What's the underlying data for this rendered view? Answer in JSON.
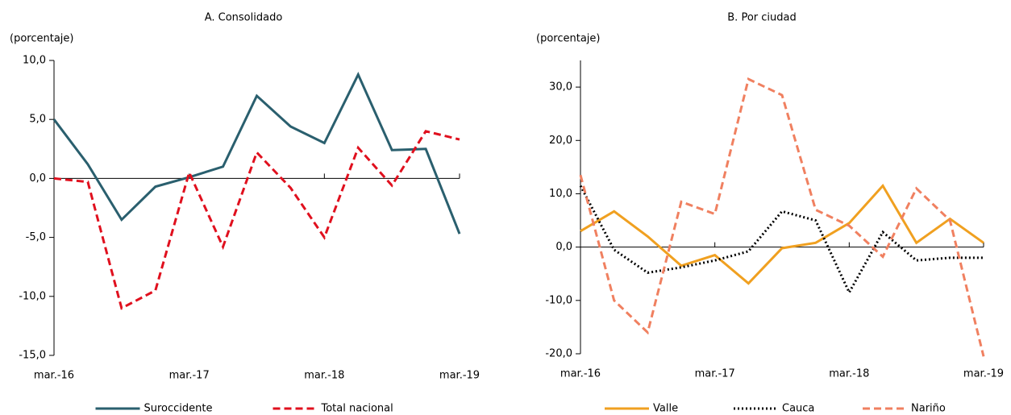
{
  "chart_data": [
    {
      "type": "line",
      "title": "A. Consolidado",
      "y_label": "(porcentaje)",
      "categories": [
        "mar.-16",
        null,
        null,
        null,
        "mar.-17",
        null,
        null,
        null,
        "mar.-18",
        null,
        null,
        null,
        "mar.-19"
      ],
      "series": [
        {
          "name": "Suroccidente",
          "color": "#2a5f6e",
          "dash": "solid",
          "values": [
            5.0,
            1.2,
            -3.5,
            -0.7,
            0.1,
            1.0,
            7.0,
            4.4,
            3.0,
            8.8,
            2.4,
            2.5,
            -4.7
          ]
        },
        {
          "name": "Total nacional",
          "color": "#e0101e",
          "dash": "dashed",
          "values": [
            0.0,
            -0.3,
            -11.0,
            -9.5,
            0.5,
            -5.8,
            2.2,
            -0.8,
            -5.0,
            2.6,
            -0.6,
            4.0,
            3.3
          ]
        }
      ],
      "ylim": [
        -15,
        10
      ],
      "yticks": [
        {
          "value": -15,
          "label": "-15,0"
        },
        {
          "value": -10,
          "label": "-10,0"
        },
        {
          "value": -5,
          "label": "-5,0"
        },
        {
          "value": 0,
          "label": "0,0"
        },
        {
          "value": 5,
          "label": "5,0"
        },
        {
          "value": 10,
          "label": "10,0"
        }
      ]
    },
    {
      "type": "line",
      "title": "B. Por ciudad",
      "y_label": "(porcentaje)",
      "categories": [
        "mar.-16",
        null,
        null,
        null,
        "mar.-17",
        null,
        null,
        null,
        "mar.-18",
        null,
        null,
        null,
        "mar.-19"
      ],
      "series": [
        {
          "name": "Valle",
          "color": "#f0a020",
          "dash": "solid",
          "values": [
            3.0,
            6.7,
            2.0,
            -3.5,
            -1.5,
            -6.8,
            -0.2,
            0.8,
            4.5,
            11.5,
            0.8,
            5.3,
            0.8
          ]
        },
        {
          "name": "Cauca",
          "color": "#000000",
          "dash": "dotted",
          "values": [
            11.5,
            -0.5,
            -4.8,
            -3.8,
            -2.5,
            -0.8,
            6.7,
            5.0,
            -8.5,
            2.8,
            -2.5,
            -2.0,
            -2.0
          ]
        },
        {
          "name": "Nariño",
          "color": "#f08060",
          "dash": "dashed",
          "values": [
            13.5,
            -10.0,
            -16.0,
            8.5,
            6.2,
            31.5,
            28.5,
            7.0,
            4.0,
            -1.8,
            11.0,
            5.0,
            -20.5
          ]
        }
      ],
      "ylim": [
        -20,
        35
      ],
      "yticks": [
        {
          "value": -20,
          "label": "-20,0"
        },
        {
          "value": -10,
          "label": "-10,0"
        },
        {
          "value": 0,
          "label": "0,0"
        },
        {
          "value": 10,
          "label": "10,0"
        },
        {
          "value": 20,
          "label": "20,0"
        },
        {
          "value": 30,
          "label": "30,0"
        }
      ]
    }
  ]
}
